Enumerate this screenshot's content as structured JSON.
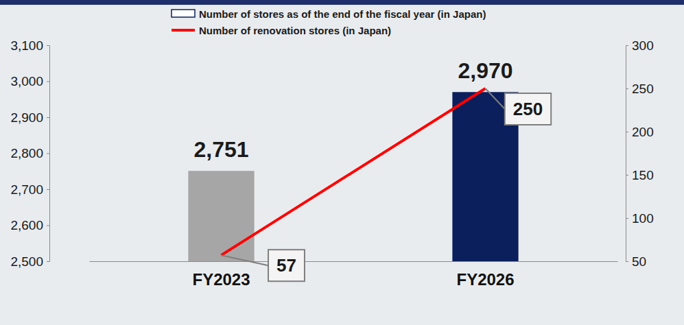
{
  "chart_data": {
    "type": "bar",
    "categories": [
      "FY2023",
      "FY2026"
    ],
    "series": [
      {
        "name": "Number of stores as of the end of the fiscal year (in Japan)",
        "type": "bar",
        "colors": [
          "#a6a6a6",
          "#0b1f5c"
        ],
        "values": [
          2751,
          2970
        ],
        "value_labels": [
          "2,751",
          "2,970"
        ]
      },
      {
        "name": "Number of renovation stores (in Japan)",
        "type": "line",
        "axis": "y2",
        "color": "#ff0000",
        "values": [
          57,
          250
        ]
      }
    ],
    "ylim": [
      2500,
      3100
    ],
    "yticks": [
      {
        "value": 2500,
        "label": "2,500"
      },
      {
        "value": 2600,
        "label": "2,600"
      },
      {
        "value": 2700,
        "label": "2,700"
      },
      {
        "value": 2800,
        "label": "2,800"
      },
      {
        "value": 2900,
        "label": "2,900"
      },
      {
        "value": 3000,
        "label": "3,000"
      },
      {
        "value": 3100,
        "label": "3,100"
      }
    ],
    "y2lim": [
      50,
      300
    ],
    "y2ticks": [
      50,
      100,
      150,
      200,
      250,
      300
    ],
    "grid": false,
    "legend": "top",
    "data_labels": true
  }
}
